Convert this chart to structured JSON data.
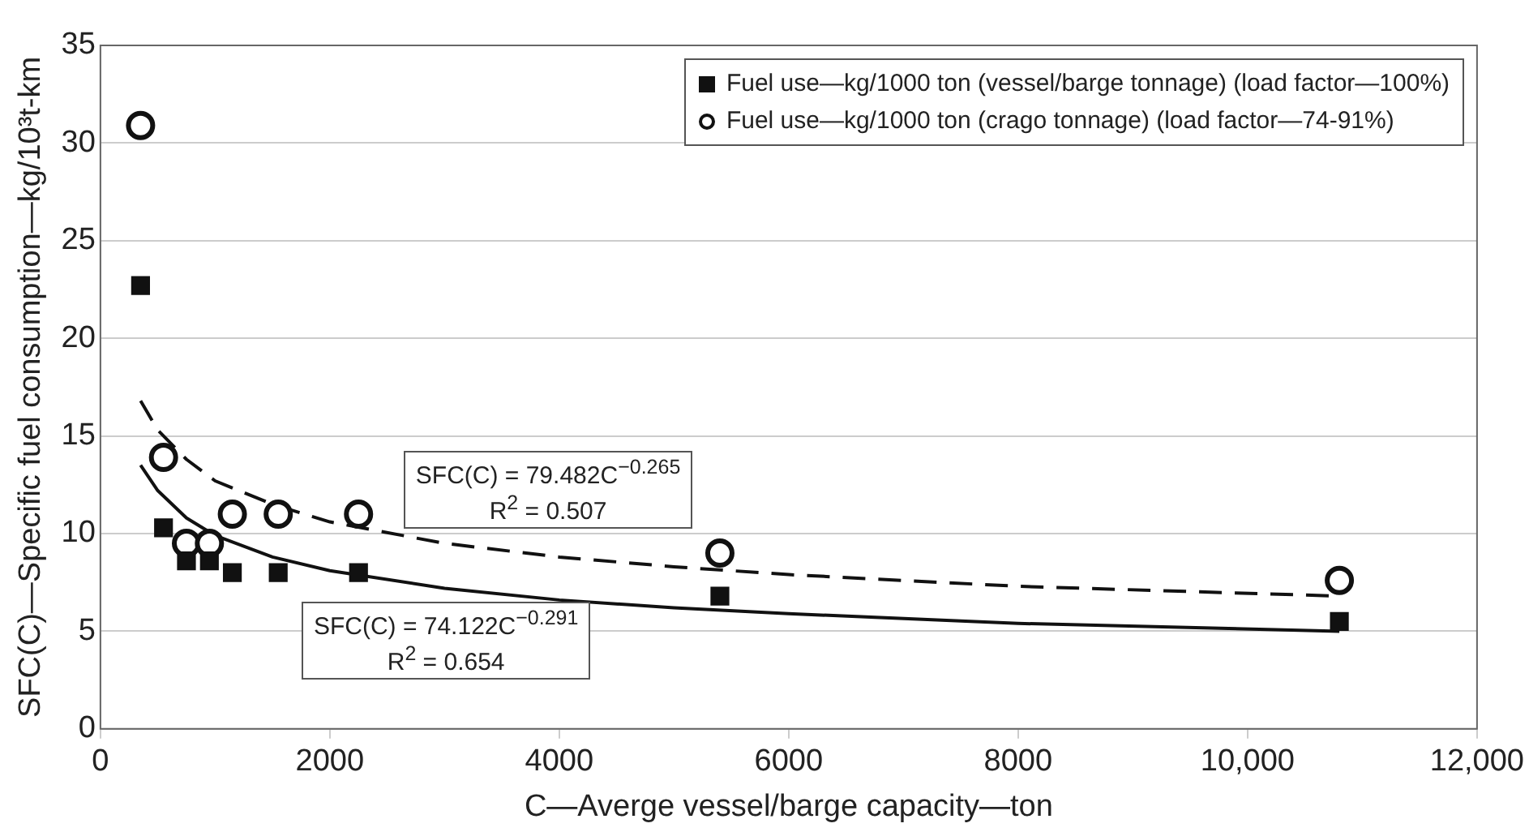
{
  "chart_data": {
    "type": "scatter",
    "xlabel": "C—Averge vessel/barge capacity—ton",
    "ylabel": "SFC(C)—Specific fuel consumption—kg/10³t-km",
    "xlim": [
      0,
      12000
    ],
    "xticks": [
      0,
      2000,
      4000,
      6000,
      8000,
      {
        "value": 10000,
        "label": "10,000"
      },
      {
        "value": 12000,
        "label": "12,000"
      }
    ],
    "ylim": [
      0,
      35
    ],
    "yticks": [
      0,
      5,
      10,
      15,
      20,
      25,
      30,
      35
    ],
    "grid": "y",
    "legend": "top right",
    "series": [
      {
        "name": "Fuel use—kg/1000 ton (vessel/barge tonnage) (load factor—100%)",
        "color": "#111111",
        "marker": "square",
        "x": [
          350,
          550,
          750,
          950,
          1150,
          1550,
          2250,
          5400,
          10800
        ],
        "values": [
          22.7,
          10.3,
          8.6,
          8.6,
          8.0,
          8.0,
          8.0,
          6.8,
          5.5
        ]
      },
      {
        "name": "Fuel use—kg/1000 ton (crago tonnage) (load factor—74-91%)",
        "color": "#111111",
        "marker": "circle",
        "x": [
          350,
          550,
          750,
          950,
          1150,
          1550,
          2250,
          5400,
          10800
        ],
        "values": [
          30.9,
          13.9,
          9.5,
          9.5,
          11.0,
          11.0,
          11.0,
          9.0,
          7.6
        ]
      },
      {
        "type": "line",
        "color": "#111111",
        "marker": "none",
        "line_style": "solid",
        "x": [
          350,
          500,
          750,
          1000,
          1500,
          2000,
          3000,
          4000,
          5000,
          6000,
          8000,
          10800
        ],
        "values": [
          13.5,
          12.2,
          10.8,
          9.9,
          8.8,
          8.1,
          7.2,
          6.6,
          6.2,
          5.9,
          5.4,
          5.0
        ]
      },
      {
        "type": "line",
        "color": "#111111",
        "marker": "none",
        "line_style": "dashed",
        "x": [
          350,
          500,
          750,
          1000,
          1500,
          2000,
          3000,
          4000,
          5000,
          6000,
          8000,
          10800
        ],
        "values": [
          16.8,
          15.3,
          13.8,
          12.7,
          11.5,
          10.6,
          9.5,
          8.8,
          8.3,
          7.9,
          7.3,
          6.8
        ]
      }
    ],
    "annotations": [
      "SFC(C) = 79.482C$^{−0.265}$\nR$^{2}$ = 0.507",
      "SFC(C) = 74.122C$^{−0.291}$\nR$^{2}$ = 0.654"
    ]
  }
}
